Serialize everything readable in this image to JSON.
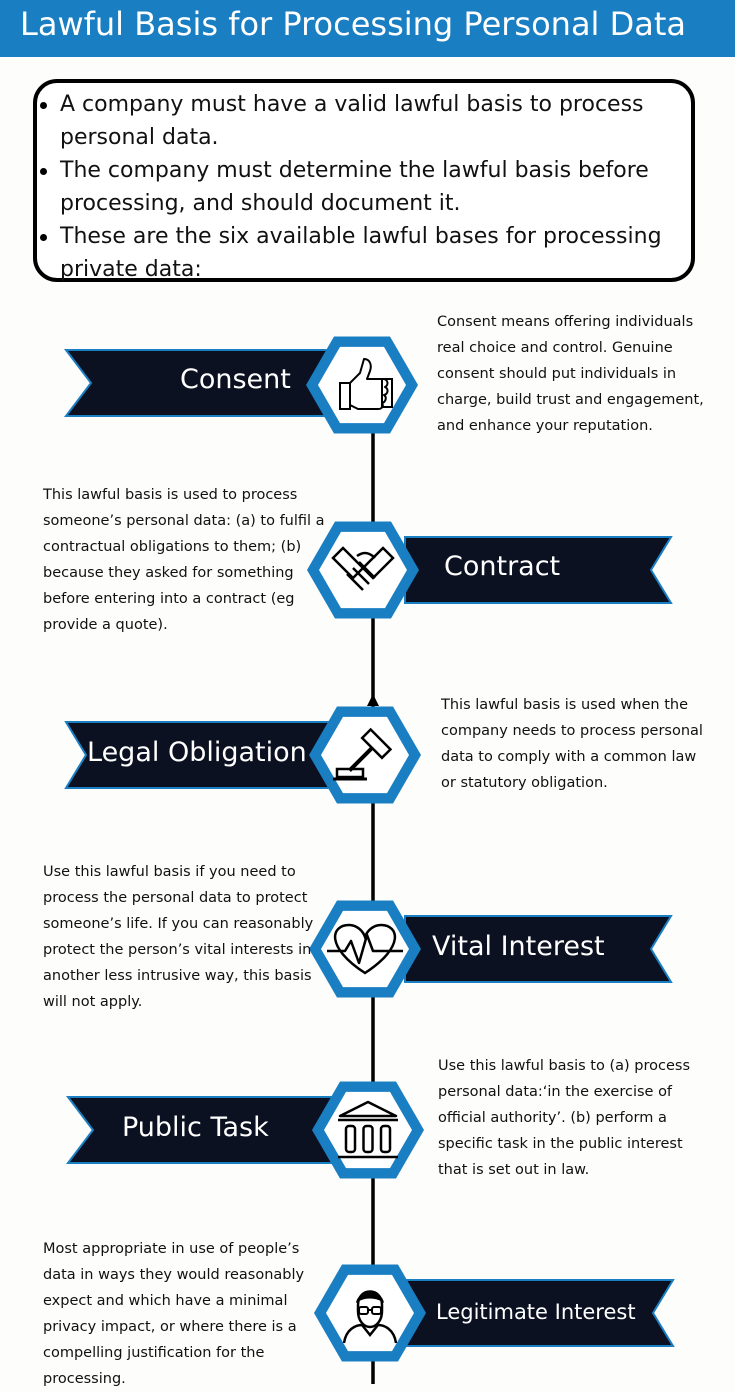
{
  "header": {
    "title": "Lawful Basis for Processing Personal Data"
  },
  "intro": {
    "bullets": [
      "A company must have a valid lawful basis to process personal data.",
      "The company must determine the lawful basis before processing, and should document it.",
      "These are the six available lawful bases for processing private data:"
    ]
  },
  "colors": {
    "header": "#1a7ec2",
    "banner": "#0b1120",
    "accent": "#1a7ec2",
    "hexagon_inner": "#ffffff"
  },
  "bases": [
    {
      "label": "Consent",
      "icon": "thumbs-up-icon",
      "description": "Consent means offering individuals real choice and control. Genuine consent should put individuals in charge, build trust and engagement, and enhance your reputation."
    },
    {
      "label": "Contract",
      "icon": "handshake-icon",
      "description": "This lawful basis is used to process someone’s personal data: (a) to fulfil a contractual obligations to them; (b) because they asked for something before entering into a contract (eg provide a quote)."
    },
    {
      "label": "Legal Obligation",
      "icon": "gavel-icon",
      "description": "This lawful basis is used when the company needs to process personal data to comply with a common law or statutory obligation."
    },
    {
      "label": "Vital Interest",
      "icon": "heartbeat-icon",
      "description": "Use this lawful basis if you need to process the personal data to protect someone’s life. If you can reasonably protect the person’s vital interests in another less intrusive way, this basis will not apply."
    },
    {
      "label": "Public Task",
      "icon": "government-building-icon",
      "description": "Use this lawful basis to (a) process personal data:‘in the exercise of official authority’. (b) perform a specific task in the public interest that is set out in law."
    },
    {
      "label": "Legitimate Interest",
      "icon": "person-with-glasses-icon",
      "description": "Most appropriate in use of people’s data in ways they would reasonably expect and which have a minimal privacy impact, or where there is a compelling justification for the processing."
    }
  ]
}
